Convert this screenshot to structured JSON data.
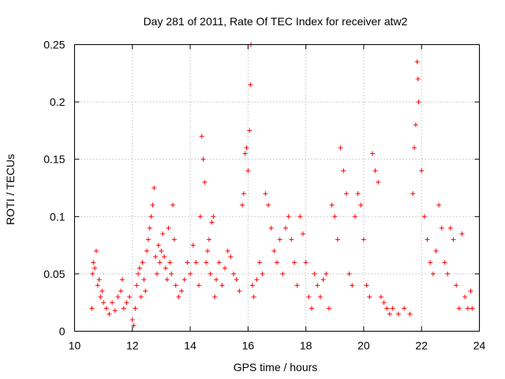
{
  "chart_data": {
    "type": "scatter",
    "title": "Day 281 of 2011, Rate Of TEC Index for receiver atw2",
    "xlabel": "GPS time / hours",
    "ylabel": "ROTI / TECUs",
    "xlim": [
      10,
      24
    ],
    "ylim": [
      0,
      0.25
    ],
    "x_ticks": [
      "10",
      "12",
      "14",
      "16",
      "18",
      "20",
      "22",
      "24"
    ],
    "y_ticks": [
      "0",
      "0.05",
      "0.1",
      "0.15",
      "0.2",
      "0.25"
    ],
    "grid": true,
    "marker": "+",
    "colors": {
      "series": "#ff0000"
    },
    "series": [
      {
        "values": [
          [
            10.6,
            0.02
          ],
          [
            10.62,
            0.05
          ],
          [
            10.65,
            0.06
          ],
          [
            10.7,
            0.055
          ],
          [
            10.75,
            0.07
          ],
          [
            10.8,
            0.04
          ],
          [
            10.85,
            0.045
          ],
          [
            10.9,
            0.03
          ],
          [
            10.95,
            0.035
          ],
          [
            11.0,
            0.025
          ],
          [
            11.1,
            0.02
          ],
          [
            11.2,
            0.015
          ],
          [
            11.3,
            0.025
          ],
          [
            11.4,
            0.018
          ],
          [
            11.5,
            0.03
          ],
          [
            11.6,
            0.035
          ],
          [
            11.65,
            0.045
          ],
          [
            11.7,
            0.02
          ],
          [
            11.8,
            0.025
          ],
          [
            11.9,
            0.03
          ],
          [
            12.0,
            0.01
          ],
          [
            12.05,
            0.005
          ],
          [
            12.1,
            0.02
          ],
          [
            12.15,
            0.04
          ],
          [
            12.2,
            0.05
          ],
          [
            12.25,
            0.055
          ],
          [
            12.3,
            0.03
          ],
          [
            12.35,
            0.06
          ],
          [
            12.4,
            0.045
          ],
          [
            12.45,
            0.035
          ],
          [
            12.5,
            0.07
          ],
          [
            12.55,
            0.08
          ],
          [
            12.6,
            0.09
          ],
          [
            12.65,
            0.1
          ],
          [
            12.7,
            0.11
          ],
          [
            12.75,
            0.125
          ],
          [
            12.8,
            0.065
          ],
          [
            12.85,
            0.05
          ],
          [
            12.9,
            0.075
          ],
          [
            12.95,
            0.06
          ],
          [
            13.0,
            0.07
          ],
          [
            13.05,
            0.085
          ],
          [
            13.1,
            0.065
          ],
          [
            13.15,
            0.055
          ],
          [
            13.2,
            0.045
          ],
          [
            13.25,
            0.09
          ],
          [
            13.3,
            0.06
          ],
          [
            13.35,
            0.05
          ],
          [
            13.4,
            0.11
          ],
          [
            13.45,
            0.08
          ],
          [
            13.5,
            0.04
          ],
          [
            13.6,
            0.03
          ],
          [
            13.7,
            0.035
          ],
          [
            13.8,
            0.045
          ],
          [
            13.9,
            0.06
          ],
          [
            14.0,
            0.05
          ],
          [
            14.1,
            0.075
          ],
          [
            14.2,
            0.06
          ],
          [
            14.3,
            0.04
          ],
          [
            14.35,
            0.1
          ],
          [
            14.4,
            0.17
          ],
          [
            14.45,
            0.15
          ],
          [
            14.5,
            0.13
          ],
          [
            14.55,
            0.06
          ],
          [
            14.6,
            0.07
          ],
          [
            14.65,
            0.08
          ],
          [
            14.7,
            0.05
          ],
          [
            14.75,
            0.095
          ],
          [
            14.8,
            0.1
          ],
          [
            14.85,
            0.03
          ],
          [
            14.9,
            0.045
          ],
          [
            15.0,
            0.06
          ],
          [
            15.1,
            0.04
          ],
          [
            15.2,
            0.055
          ],
          [
            15.3,
            0.07
          ],
          [
            15.4,
            0.065
          ],
          [
            15.5,
            0.05
          ],
          [
            15.6,
            0.045
          ],
          [
            15.7,
            0.035
          ],
          [
            15.8,
            0.11
          ],
          [
            15.85,
            0.12
          ],
          [
            15.9,
            0.155
          ],
          [
            15.95,
            0.16
          ],
          [
            16.0,
            0.14
          ],
          [
            16.05,
            0.175
          ],
          [
            16.08,
            0.215
          ],
          [
            16.1,
            0.25
          ],
          [
            16.15,
            0.04
          ],
          [
            16.2,
            0.03
          ],
          [
            16.3,
            0.045
          ],
          [
            16.4,
            0.06
          ],
          [
            16.5,
            0.05
          ],
          [
            16.6,
            0.12
          ],
          [
            16.7,
            0.11
          ],
          [
            16.8,
            0.09
          ],
          [
            16.9,
            0.07
          ],
          [
            17.0,
            0.06
          ],
          [
            17.1,
            0.08
          ],
          [
            17.2,
            0.05
          ],
          [
            17.3,
            0.09
          ],
          [
            17.4,
            0.1
          ],
          [
            17.5,
            0.08
          ],
          [
            17.6,
            0.06
          ],
          [
            17.7,
            0.04
          ],
          [
            17.8,
            0.1
          ],
          [
            17.9,
            0.085
          ],
          [
            18.0,
            0.06
          ],
          [
            18.1,
            0.03
          ],
          [
            18.2,
            0.02
          ],
          [
            18.3,
            0.05
          ],
          [
            18.4,
            0.04
          ],
          [
            18.5,
            0.03
          ],
          [
            18.6,
            0.045
          ],
          [
            18.7,
            0.05
          ],
          [
            18.8,
            0.02
          ],
          [
            18.9,
            0.11
          ],
          [
            19.0,
            0.1
          ],
          [
            19.1,
            0.08
          ],
          [
            19.2,
            0.16
          ],
          [
            19.3,
            0.14
          ],
          [
            19.4,
            0.12
          ],
          [
            19.5,
            0.05
          ],
          [
            19.6,
            0.04
          ],
          [
            19.7,
            0.1
          ],
          [
            19.8,
            0.12
          ],
          [
            19.9,
            0.11
          ],
          [
            20.0,
            0.08
          ],
          [
            20.1,
            0.04
          ],
          [
            20.2,
            0.03
          ],
          [
            20.3,
            0.155
          ],
          [
            20.4,
            0.14
          ],
          [
            20.5,
            0.13
          ],
          [
            20.6,
            0.03
          ],
          [
            20.7,
            0.025
          ],
          [
            20.8,
            0.02
          ],
          [
            20.9,
            0.015
          ],
          [
            21.0,
            0.02
          ],
          [
            21.2,
            0.015
          ],
          [
            21.4,
            0.02
          ],
          [
            21.6,
            0.015
          ],
          [
            21.7,
            0.12
          ],
          [
            21.75,
            0.16
          ],
          [
            21.8,
            0.18
          ],
          [
            21.85,
            0.235
          ],
          [
            21.88,
            0.22
          ],
          [
            21.9,
            0.2
          ],
          [
            22.0,
            0.14
          ],
          [
            22.1,
            0.1
          ],
          [
            22.2,
            0.08
          ],
          [
            22.3,
            0.06
          ],
          [
            22.4,
            0.05
          ],
          [
            22.5,
            0.07
          ],
          [
            22.6,
            0.11
          ],
          [
            22.7,
            0.09
          ],
          [
            22.8,
            0.06
          ],
          [
            22.9,
            0.05
          ],
          [
            23.0,
            0.09
          ],
          [
            23.1,
            0.08
          ],
          [
            23.2,
            0.04
          ],
          [
            23.3,
            0.02
          ],
          [
            23.4,
            0.085
          ],
          [
            23.5,
            0.03
          ],
          [
            23.6,
            0.02
          ],
          [
            23.7,
            0.035
          ],
          [
            23.75,
            0.02
          ]
        ]
      }
    ]
  }
}
